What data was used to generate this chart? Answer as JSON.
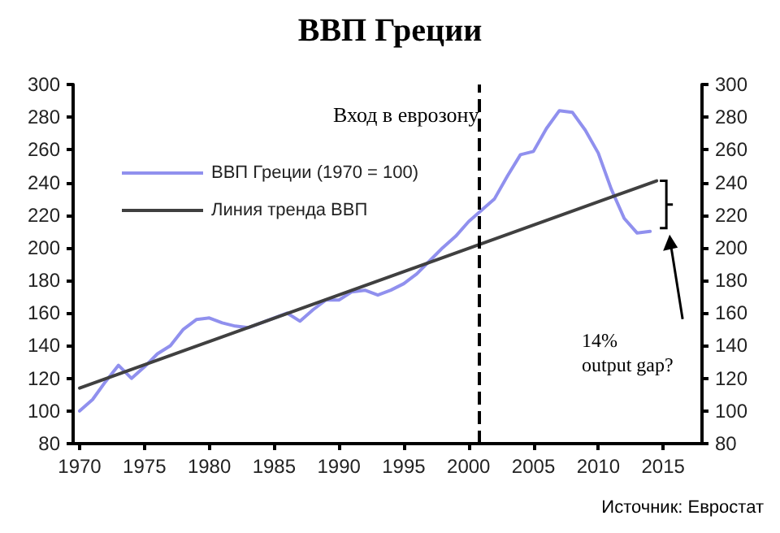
{
  "chart_data": {
    "type": "line",
    "title": "ВВП Греции",
    "x": [
      1970,
      1971,
      1972,
      1973,
      1974,
      1975,
      1976,
      1977,
      1978,
      1979,
      1980,
      1981,
      1982,
      1983,
      1984,
      1985,
      1986,
      1987,
      1988,
      1989,
      1990,
      1991,
      1992,
      1993,
      1994,
      1995,
      1996,
      1997,
      1998,
      1999,
      2000,
      2001,
      2002,
      2003,
      2004,
      2005,
      2006,
      2007,
      2008,
      2009,
      2010,
      2011,
      2012,
      2013,
      2014
    ],
    "series": [
      {
        "name": "ВВП Греции (1970 = 100)",
        "color": "#9090ee",
        "values": [
          100,
          107,
          118,
          128,
          120,
          127,
          135,
          140,
          150,
          156,
          157,
          154,
          152,
          151,
          154,
          157,
          160,
          155,
          162,
          168,
          168,
          173,
          174,
          171,
          174,
          178,
          184,
          192,
          200,
          207,
          216,
          223,
          230,
          244,
          257,
          259,
          273,
          284,
          283,
          272,
          258,
          236,
          218,
          209,
          210
        ]
      },
      {
        "name": "Линия тренда ВВП",
        "color": "#404040",
        "x": [
          1970,
          2014.5
        ],
        "values": [
          114,
          241
        ]
      }
    ],
    "xlim": [
      1969.5,
      2018
    ],
    "xticks": [
      1970,
      1975,
      1980,
      1985,
      1990,
      1995,
      2000,
      2005,
      2010,
      2015
    ],
    "ylim": [
      80,
      300
    ],
    "yticks": [
      80,
      100,
      120,
      140,
      160,
      180,
      200,
      220,
      240,
      260,
      280,
      300
    ],
    "y2lim": [
      80,
      300
    ],
    "y2ticks": [
      80,
      100,
      120,
      140,
      160,
      180,
      200,
      220,
      240,
      260,
      280,
      300
    ],
    "ref_lines": [
      {
        "axis": "x",
        "value": 2000.8,
        "label": "Вход в еврозону",
        "color": "#000000",
        "line_style": "dashed"
      }
    ],
    "annotations": [
      "14%\noutput gap?",
      "Источник: Евростат"
    ],
    "legend": "top left",
    "grid": false,
    "marker": "none",
    "line_style": "solid"
  }
}
